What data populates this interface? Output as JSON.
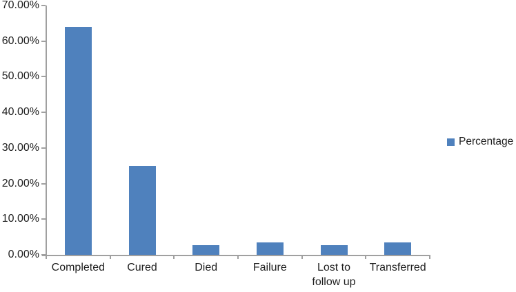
{
  "chart_data": {
    "type": "bar",
    "title": "",
    "xlabel": "",
    "ylabel": "",
    "categories": [
      "Completed",
      "Cured",
      "Died",
      "Failure",
      "Lost to follow up",
      "Transferred"
    ],
    "series": [
      {
        "name": "Percentage",
        "values": [
          64,
          25,
          2.7,
          3.4,
          2.7,
          3.4
        ]
      }
    ],
    "legend": [
      "Percentage"
    ],
    "legend_position": "middle-right",
    "ylim": [
      0,
      70
    ],
    "ytick_values": [
      0,
      10,
      20,
      30,
      40,
      50,
      60,
      70
    ],
    "ytick_labels": [
      "0.00%",
      "10.00%",
      "20.00%",
      "30.00%",
      "40.00%",
      "50.00%",
      "60.00%",
      "70.00%"
    ],
    "grid": false,
    "bar_color": "#4f81bd",
    "axis_color": "#a0a0a0",
    "text_color": "#1f1f1f",
    "background_color": "#ffffff"
  }
}
